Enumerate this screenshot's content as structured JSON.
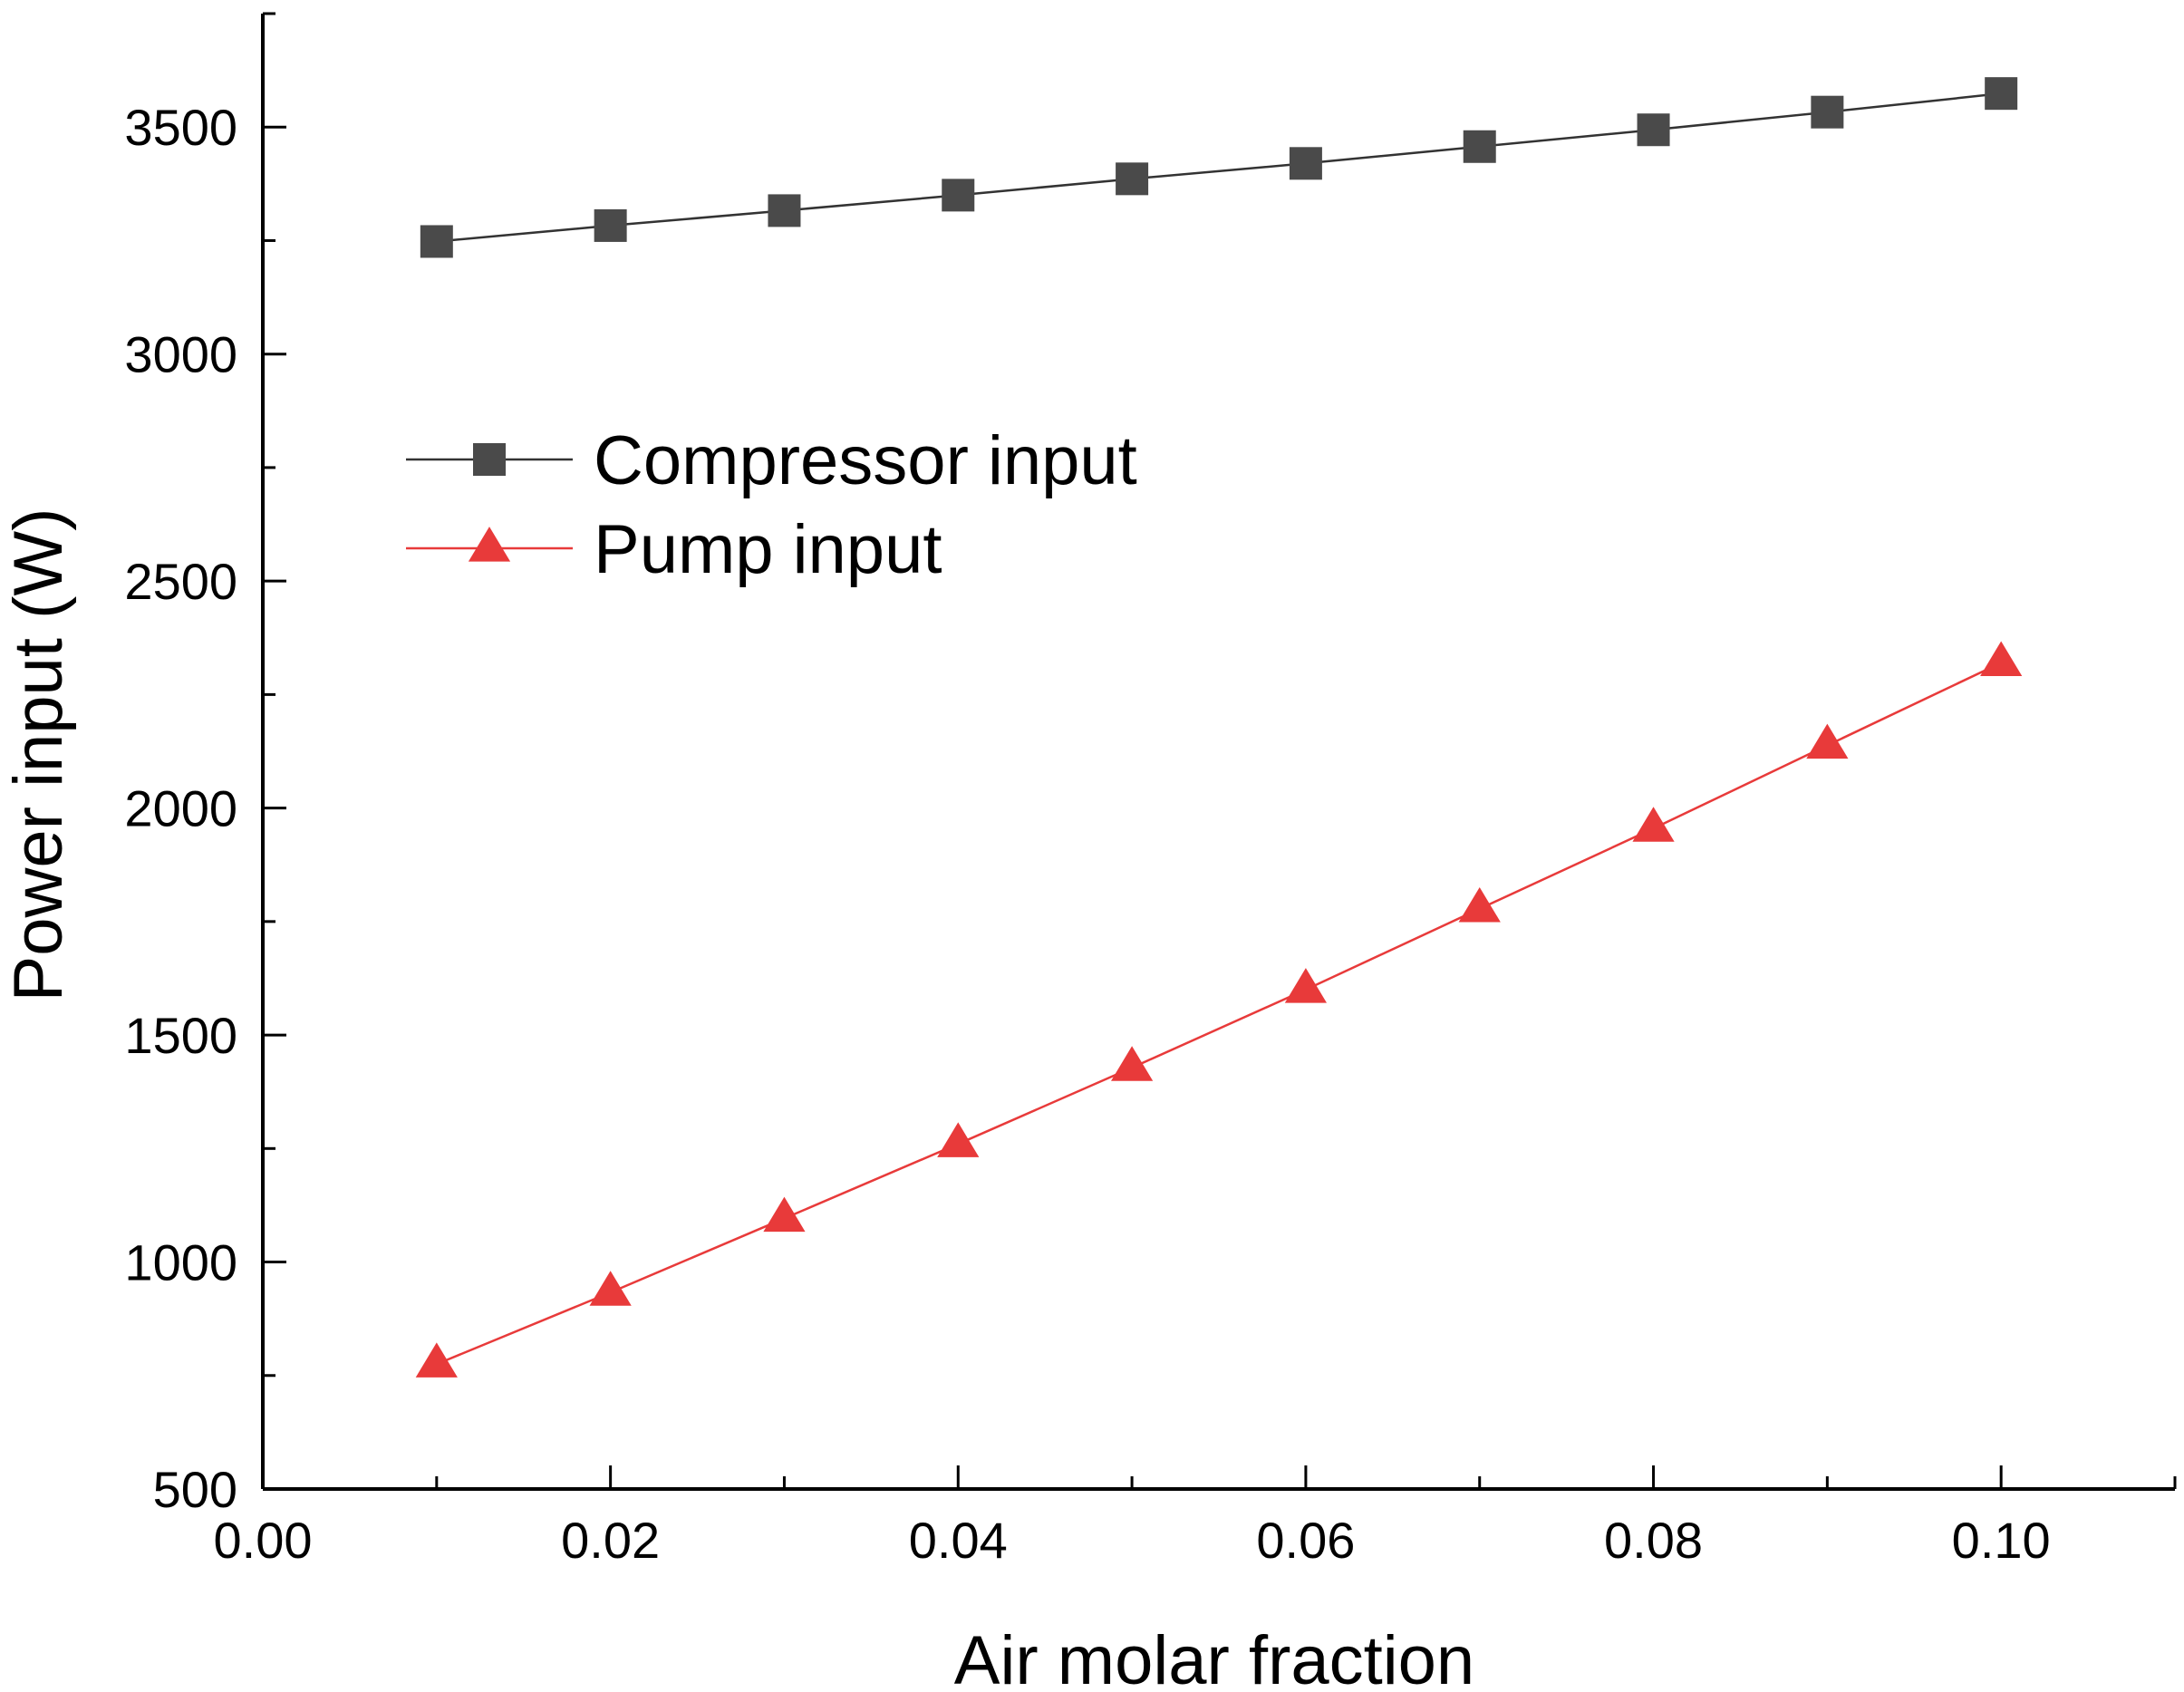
{
  "chart_data": {
    "type": "line",
    "title": "",
    "xlabel": "Air molar fraction",
    "ylabel": "Power input (W)",
    "xlim": [
      0.0,
      0.11
    ],
    "ylim": [
      500,
      3750
    ],
    "x_ticks": [
      0.0,
      0.02,
      0.04,
      0.06,
      0.08,
      0.1
    ],
    "x_tick_labels": [
      "0.00",
      "0.02",
      "0.04",
      "0.06",
      "0.08",
      "0.10"
    ],
    "x_minor_ticks": [
      0.01,
      0.03,
      0.05,
      0.07,
      0.09,
      0.11
    ],
    "y_ticks": [
      500,
      1000,
      1500,
      2000,
      2500,
      3000,
      3500
    ],
    "y_tick_labels": [
      "500",
      "1000",
      "1500",
      "2000",
      "2500",
      "3000",
      "3500"
    ],
    "y_minor_ticks": [
      750,
      1250,
      1750,
      2250,
      2750,
      3250,
      3750
    ],
    "grid": false,
    "legend_position": "center-left",
    "x": [
      0.01,
      0.02,
      0.03,
      0.04,
      0.05,
      0.06,
      0.07,
      0.08,
      0.09,
      0.1
    ],
    "series": [
      {
        "name": "Compressor input",
        "marker": "square",
        "color": "#4a4a4a",
        "line_color": "#333333",
        "values": [
          3248,
          3283,
          3316,
          3350,
          3386,
          3420,
          3457,
          3494,
          3533,
          3574
        ]
      },
      {
        "name": "Pump input",
        "marker": "triangle",
        "color": "#e83a3a",
        "line_color": "#e83a3a",
        "values": [
          775,
          933,
          1096,
          1260,
          1428,
          1600,
          1778,
          1955,
          2138,
          2320
        ]
      }
    ]
  }
}
